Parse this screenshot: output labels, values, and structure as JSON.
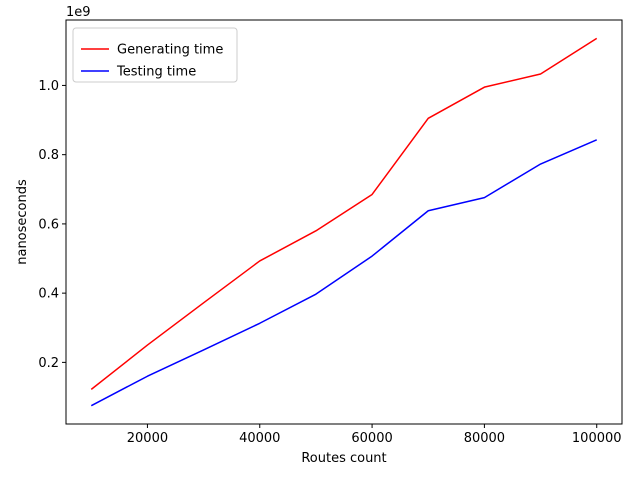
{
  "chart_data": {
    "type": "line",
    "title": "",
    "xlabel": "Routes count",
    "ylabel": "nanoseconds",
    "y_offset_text": "1e9",
    "x": [
      10000,
      20000,
      30000,
      40000,
      50000,
      60000,
      70000,
      80000,
      90000,
      100000
    ],
    "series": [
      {
        "name": "Generating time",
        "color": "#ff0000",
        "values": [
          0.122,
          0.25,
          0.372,
          0.493,
          0.58,
          0.685,
          0.905,
          0.995,
          1.033,
          1.136
        ]
      },
      {
        "name": "Testing time",
        "color": "#0000ff",
        "values": [
          0.075,
          0.16,
          0.236,
          0.313,
          0.397,
          0.507,
          0.638,
          0.676,
          0.773,
          0.843
        ]
      }
    ],
    "xlim": [
      5500,
      104500
    ],
    "ylim": [
      0.022,
      1.189
    ],
    "xticks": [
      20000,
      40000,
      60000,
      80000,
      100000
    ],
    "xtick_labels": [
      "20000",
      "40000",
      "60000",
      "80000",
      "100000"
    ],
    "yticks": [
      0.2,
      0.4,
      0.6,
      0.8,
      1.0
    ],
    "ytick_labels": [
      "0.2",
      "0.4",
      "0.6",
      "0.8",
      "1.0"
    ],
    "grid": false,
    "legend_position": "upper-left"
  }
}
